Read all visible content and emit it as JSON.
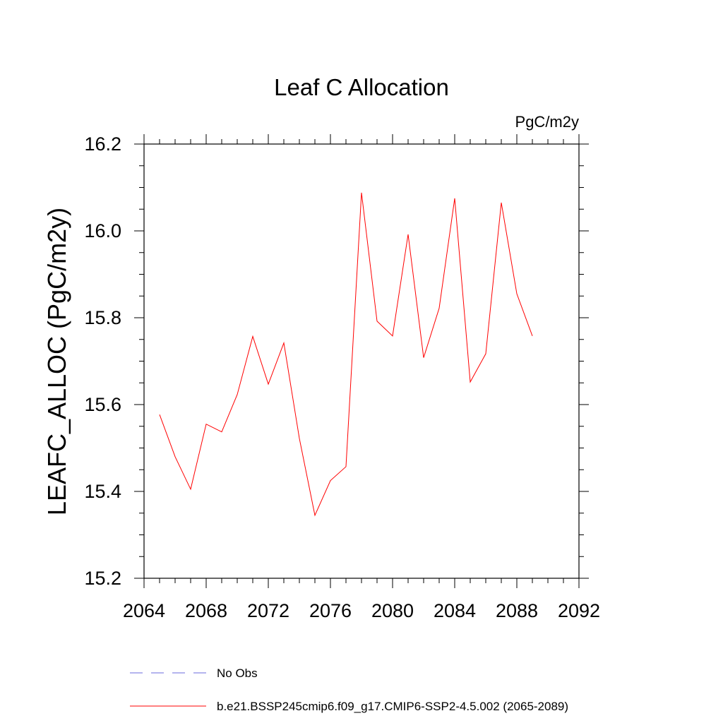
{
  "chart_data": {
    "type": "line",
    "title": "Leaf C Allocation",
    "units_label": "PgC/m2y",
    "xlabel": "",
    "ylabel": "LEAFC_ALLOC  (PgC/m2y)",
    "xlim": [
      2064,
      2092
    ],
    "ylim": [
      15.2,
      16.2
    ],
    "x_ticks": [
      2064,
      2068,
      2072,
      2076,
      2080,
      2084,
      2088,
      2092
    ],
    "y_ticks": [
      15.2,
      15.4,
      15.6,
      15.8,
      16.0,
      16.2
    ],
    "x_tick_labels": [
      "2064",
      "2068",
      "2072",
      "2076",
      "2080",
      "2084",
      "2088",
      "2092"
    ],
    "y_tick_labels": [
      "15.2",
      "15.4",
      "15.6",
      "15.8",
      "16.0",
      "16.2"
    ],
    "grid": false,
    "series": [
      {
        "name": "b.e21.BSSP245cmip6.f09_g17.CMIP6-SSP2-4.5.002 (2065-2089)",
        "color": "#ff0000",
        "style": "solid",
        "x": [
          2065,
          2066,
          2067,
          2068,
          2069,
          2070,
          2071,
          2072,
          2073,
          2074,
          2075,
          2076,
          2077,
          2078,
          2079,
          2080,
          2081,
          2082,
          2083,
          2084,
          2085,
          2086,
          2087,
          2088,
          2089
        ],
        "values": [
          15.577,
          15.48,
          15.405,
          15.555,
          15.537,
          15.623,
          15.757,
          15.647,
          15.742,
          15.522,
          15.345,
          15.425,
          15.457,
          16.088,
          15.792,
          15.758,
          15.992,
          15.708,
          15.822,
          16.075,
          15.652,
          15.717,
          16.065,
          15.855,
          15.758
        ]
      }
    ],
    "legend": {
      "placement": "bottom",
      "entries": [
        {
          "label": "No Obs",
          "color": "#6a6adc",
          "style": "dashed"
        },
        {
          "label": "b.e21.BSSP245cmip6.f09_g17.CMIP6-SSP2-4.5.002 (2065-2089)",
          "color": "#ff0000",
          "style": "solid"
        }
      ]
    }
  }
}
